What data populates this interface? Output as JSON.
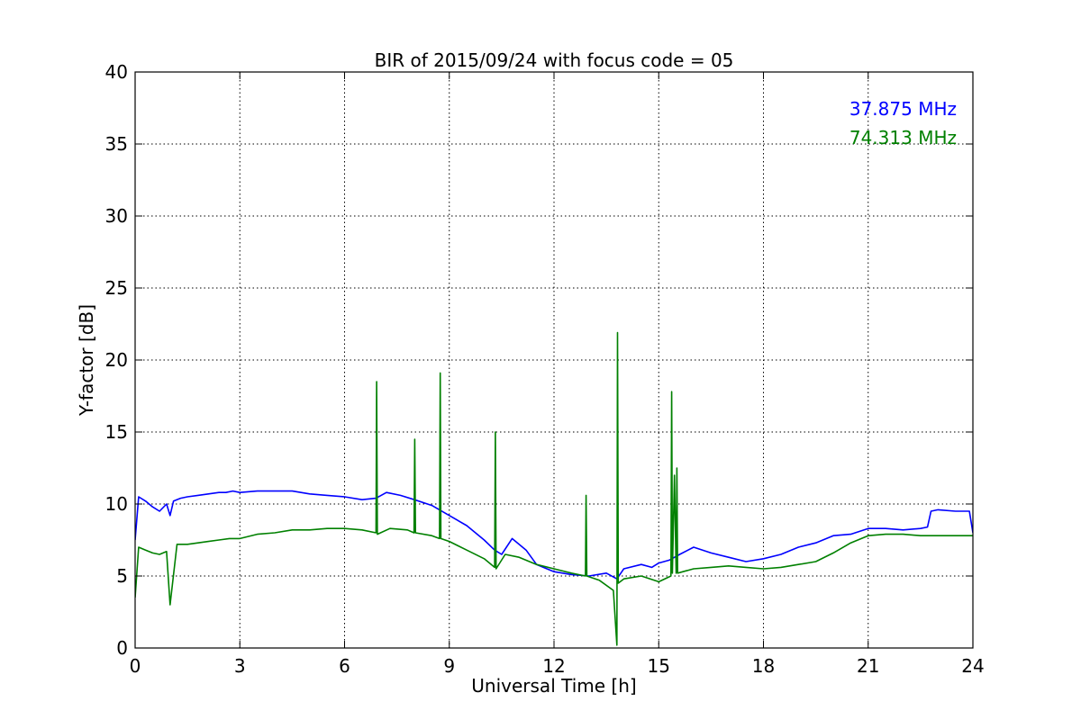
{
  "chart_data": {
    "type": "line",
    "title": "BIR of 2015/09/24 with focus code = 05",
    "xlabel": "Universal Time [h]",
    "ylabel": "Y-factor [dB]",
    "xlim": [
      0,
      24
    ],
    "ylim": [
      0,
      40
    ],
    "xticks": [
      0,
      3,
      6,
      9,
      12,
      15,
      18,
      21,
      24
    ],
    "yticks": [
      0,
      5,
      10,
      15,
      20,
      25,
      30,
      35,
      40
    ],
    "grid": true,
    "legend_position": "top-right",
    "series": [
      {
        "name": "37.875 MHz",
        "color": "#0000ff",
        "x": [
          0,
          0.1,
          0.3,
          0.5,
          0.7,
          0.9,
          1.0,
          1.1,
          1.3,
          1.5,
          1.8,
          2.1,
          2.4,
          2.6,
          2.8,
          3.0,
          3.5,
          4.0,
          4.5,
          5.0,
          5.5,
          6.0,
          6.5,
          6.9,
          7.2,
          7.6,
          8.0,
          8.5,
          9.0,
          9.5,
          10.0,
          10.3,
          10.5,
          10.8,
          11.2,
          11.5,
          12.0,
          12.5,
          13.0,
          13.5,
          13.8,
          14.0,
          14.5,
          14.8,
          15.0,
          15.3,
          15.6,
          16.0,
          16.5,
          17.0,
          17.5,
          18.0,
          18.5,
          19.0,
          19.5,
          20.0,
          20.5,
          21.0,
          21.5,
          22.0,
          22.5,
          22.7,
          22.8,
          23.0,
          23.5,
          23.9,
          24.0
        ],
        "y": [
          7.5,
          10.5,
          10.2,
          9.8,
          9.5,
          10.0,
          9.2,
          10.2,
          10.4,
          10.5,
          10.6,
          10.7,
          10.8,
          10.8,
          10.9,
          10.8,
          10.9,
          10.9,
          10.9,
          10.7,
          10.6,
          10.5,
          10.3,
          10.4,
          10.8,
          10.6,
          10.3,
          9.9,
          9.2,
          8.5,
          7.5,
          6.8,
          6.5,
          7.6,
          6.8,
          5.8,
          5.3,
          5.1,
          5.0,
          5.2,
          4.8,
          5.5,
          5.8,
          5.6,
          5.9,
          6.1,
          6.5,
          7.0,
          6.6,
          6.3,
          6.0,
          6.2,
          6.5,
          7.0,
          7.3,
          7.8,
          7.9,
          8.3,
          8.3,
          8.2,
          8.3,
          8.4,
          9.5,
          9.6,
          9.5,
          9.5,
          8.0
        ]
      },
      {
        "name": "74.313 MHz",
        "color": "#008000",
        "x": [
          0,
          0.1,
          0.3,
          0.5,
          0.7,
          0.9,
          1.0,
          1.2,
          1.5,
          1.8,
          2.1,
          2.4,
          2.7,
          3.0,
          3.5,
          4.0,
          4.5,
          5.0,
          5.5,
          6.0,
          6.5,
          6.9,
          6.92,
          6.94,
          7.3,
          7.8,
          7.99,
          8.01,
          8.03,
          8.5,
          8.72,
          8.74,
          8.76,
          9.0,
          9.5,
          10.0,
          10.3,
          10.32,
          10.34,
          10.6,
          11.0,
          11.5,
          12.0,
          12.5,
          12.9,
          12.92,
          12.94,
          13.3,
          13.7,
          13.8,
          13.82,
          13.84,
          14.0,
          14.5,
          15.0,
          15.35,
          15.37,
          15.39,
          15.45,
          15.5,
          15.52,
          15.54,
          16.0,
          16.5,
          17.0,
          17.5,
          18.0,
          18.5,
          19.0,
          19.5,
          20.0,
          20.5,
          21.0,
          21.5,
          22.0,
          22.5,
          23.0,
          23.5,
          24.0
        ],
        "y": [
          3.5,
          7.0,
          6.8,
          6.6,
          6.5,
          6.7,
          3.0,
          7.2,
          7.2,
          7.3,
          7.4,
          7.5,
          7.6,
          7.6,
          7.9,
          8.0,
          8.2,
          8.2,
          8.3,
          8.3,
          8.2,
          8.0,
          18.5,
          7.9,
          8.3,
          8.2,
          8.0,
          14.5,
          8.0,
          7.8,
          7.6,
          19.1,
          7.6,
          7.4,
          6.8,
          6.2,
          5.6,
          15.0,
          5.5,
          6.5,
          6.3,
          5.8,
          5.5,
          5.2,
          5.0,
          10.6,
          5.0,
          4.7,
          4.0,
          0.2,
          21.9,
          4.5,
          4.8,
          5.0,
          4.6,
          5.0,
          17.8,
          5.2,
          12.0,
          5.2,
          12.5,
          5.2,
          5.5,
          5.6,
          5.7,
          5.6,
          5.5,
          5.6,
          5.8,
          6.0,
          6.6,
          7.3,
          7.8,
          7.9,
          7.9,
          7.8,
          7.8,
          7.8,
          7.8
        ]
      }
    ]
  }
}
